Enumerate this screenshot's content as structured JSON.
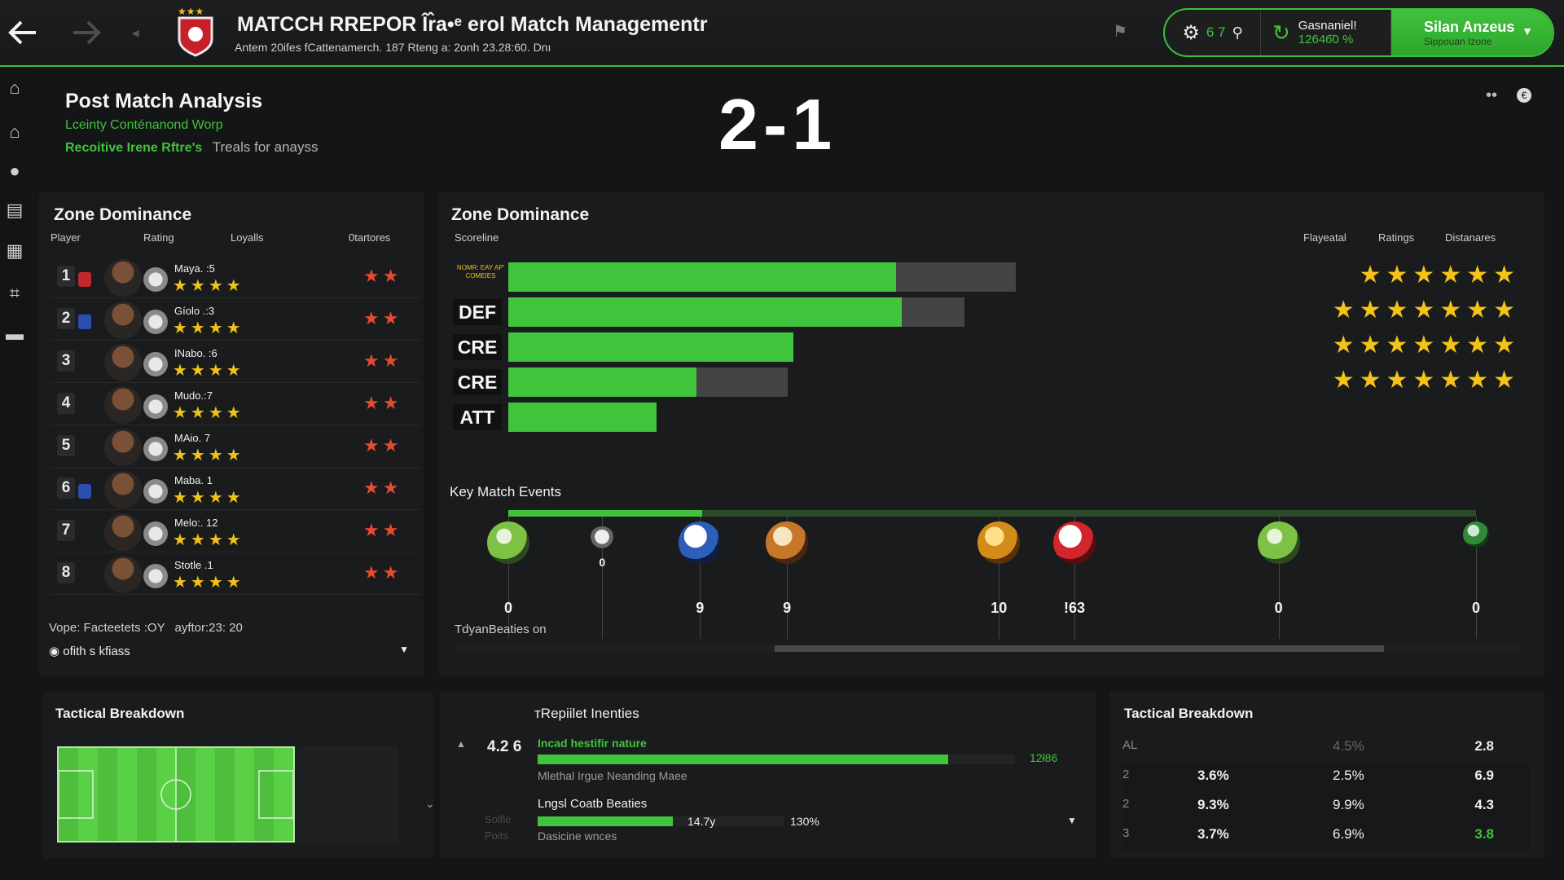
{
  "header": {
    "back_icon": "arrow-left-icon",
    "forward_icon": "arrow-right-icon",
    "title": "MATCCH RREPOR Îr̂a•ᵉ erol Match Managementr",
    "subtitle": "Antem 20ifes fCattenamerch. 187 Rteng a: 2onh 23.28:60. Dnı",
    "settings_value": "6 7",
    "search_icon": "search-icon",
    "user_name": "Gasnaniel!",
    "user_value": "12646̈0 %",
    "account_name": "Silan Anzeus",
    "account_sub": "Sippouan Izone"
  },
  "sidebar": {
    "items": [
      "home-icon",
      "team-icon",
      "player-icon",
      "inbox-icon",
      "calendar-icon",
      "tactics-icon",
      "report-icon"
    ]
  },
  "summary": {
    "heading": "Post Match Analysis",
    "line1": "Lceinty Conténanond Worp",
    "line2_green": "Recoitive Irene Rftre's",
    "line2_grey": "Treals for anayss",
    "score": "2-1"
  },
  "zone_left": {
    "title": "Zone Dominance",
    "headers": [
      "Player",
      "Rating",
      "Loyalls",
      "0tartores"
    ],
    "rows": [
      {
        "num": "1",
        "name": "Maya. :5",
        "stars": "★★★★",
        "rstars": "★★",
        "badge": "#c0282a"
      },
      {
        "num": "2",
        "name": "Gíolo .:3",
        "stars": "★★★★",
        "rstars": "★★",
        "badge": "#2b4fb0"
      },
      {
        "num": "3",
        "name": "INabo. :6",
        "stars": "★★★★",
        "rstars": "★★",
        "badge": ""
      },
      {
        "num": "4",
        "name": "Mudo.:7",
        "stars": "★★★★",
        "rstars": "★★",
        "badge": ""
      },
      {
        "num": "5",
        "name": "MAio. 7",
        "stars": "★★★★",
        "rstars": "★★",
        "badge": ""
      },
      {
        "num": "6",
        "name": "Maba. 1",
        "stars": "★★★★",
        "rstars": "★★",
        "badge": "#2b4fb0"
      },
      {
        "num": "7",
        "name": "Melo:. 12",
        "stars": "★★★★",
        "rstars": "★★",
        "badge": ""
      },
      {
        "num": "8",
        "name": "Stotle .1",
        "stars": "★★★★",
        "rstars": "★★",
        "badge": ""
      }
    ],
    "footer_text": "Vope: Facteetets :OY",
    "footer_time": "ayftor:23: 20",
    "dropdown_label": "ofith s kfiass"
  },
  "zone_right": {
    "title": "Zone Dominance",
    "sub": "Scoreline",
    "headers": [
      "Flayeatal",
      "Ratings",
      "Distanares"
    ],
    "first_label": "NOMR: EAY AP' COMEIES",
    "bars": [
      {
        "label": "",
        "value": 0.68,
        "bg": 0.89,
        "stars": "★★★★★★"
      },
      {
        "label": "DEF",
        "value": 0.69,
        "bg": 0.8,
        "stars": "★★★★★★★"
      },
      {
        "label": "CRE",
        "value": 0.5,
        "bg": 0.5,
        "stars": "★★★★★★★"
      },
      {
        "label": "CRE",
        "value": 0.33,
        "bg": 0.49,
        "stars": "★★★★★★★"
      },
      {
        "label": "ATT",
        "value": 0.26,
        "bg": 0.26,
        "stars": ""
      }
    ]
  },
  "events": {
    "title": "Key Match Events",
    "progress": 0.2,
    "items": [
      {
        "label": "0",
        "minute": 0,
        "type": "ball-green"
      },
      {
        "label": "0",
        "minute": 9.7,
        "type": "whistle"
      },
      {
        "label": "9",
        "minute": 19.8,
        "type": "ball-blue"
      },
      {
        "label": "9",
        "minute": 28.8,
        "type": "ball-orange"
      },
      {
        "label": "10",
        "minute": 50.7,
        "type": "ball-yellow"
      },
      {
        "label": "!63",
        "minute": 58.5,
        "type": "ball-red"
      },
      {
        "label": "0",
        "minute": 79.6,
        "type": "ball-green"
      },
      {
        "label": "0",
        "minute": 100,
        "type": "ball-small"
      }
    ],
    "footer": "TdyanBeaties on",
    "scroll_position": 0.3
  },
  "tactical_left": {
    "title": "Tactical Breakdown"
  },
  "middle": {
    "title": "тRepiilet Inenties",
    "value": "4.2 6",
    "bar1_label": "Incad hestifir nature",
    "bar1_value": "12ł86",
    "bar1_progress": 0.86,
    "bar1_sub": "Mlethal Irgue Neanding Maee",
    "bar2_label": "Lngsl Coatb Beaties",
    "bar2_val1": "14.7y",
    "bar2_val2": "130%",
    "bar2_progress": 0.55,
    "bar2_sub": "Dasicine wnces",
    "faded1": "Solfle",
    "faded2": "Poits"
  },
  "tactical_right": {
    "title": "Tactical Breakdown",
    "rows": [
      [
        "AL",
        "",
        "4.5%",
        "2.8"
      ],
      [
        "2",
        "3.6%",
        "2.5%",
        "6.9"
      ],
      [
        "2",
        "9.3%",
        "9.9%",
        "4.3"
      ],
      [
        "3",
        "3.7%",
        "6.9%",
        "3.8"
      ]
    ]
  },
  "colors": {
    "accent": "#3fc43b",
    "star": "#f3c318",
    "red_star": "#e44b2f",
    "bg": "#141517"
  }
}
